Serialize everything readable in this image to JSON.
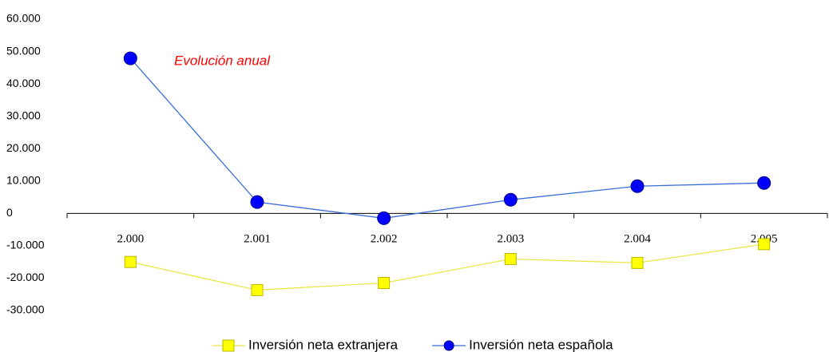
{
  "chart_data": {
    "type": "line",
    "annotation": "Evolución anual",
    "categories": [
      "2.000",
      "2.001",
      "2.002",
      "2.003",
      "2.004",
      "2.005"
    ],
    "series": [
      {
        "name": "Inversión neta extranjera",
        "color": "#ffff00",
        "line_color": "#e8e84a",
        "marker": "square",
        "values": [
          -15000,
          -23700,
          -21500,
          -14100,
          -15300,
          -9500
        ]
      },
      {
        "name": "Inversión neta española",
        "color": "#0000ff",
        "line_color": "#3a6fd8",
        "marker": "circle",
        "values": [
          47900,
          3500,
          -1500,
          4200,
          8400,
          9400
        ]
      }
    ],
    "ylim": [
      -30000,
      60000
    ],
    "yticks": [
      {
        "value": -30000,
        "label": "-30.000"
      },
      {
        "value": -20000,
        "label": "-20.000"
      },
      {
        "value": -10000,
        "label": "-10.000"
      },
      0,
      {
        "value": 10000,
        "label": "10.000"
      },
      {
        "value": 20000,
        "label": "20.000"
      },
      {
        "value": 30000,
        "label": "30.000"
      },
      {
        "value": 40000,
        "label": "40.000"
      },
      {
        "value": 50000,
        "label": "50.000"
      },
      {
        "value": 60000,
        "label": "60.000"
      }
    ],
    "legend": "bottom"
  }
}
